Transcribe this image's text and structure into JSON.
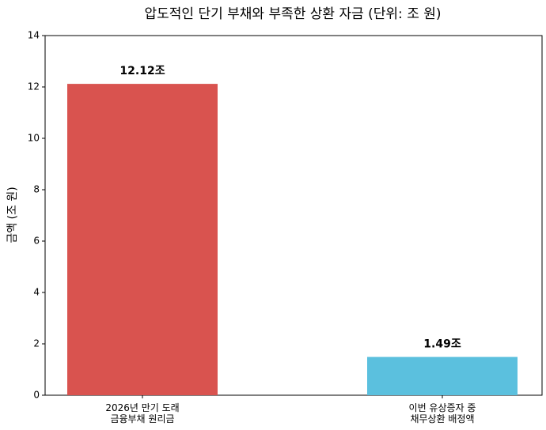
{
  "chart_data": {
    "type": "bar",
    "title": "압도적인 단기 부채와 부족한 상환 자금 (단위: 조 원)",
    "ylabel": "금액 (조 원)",
    "categories": [
      "2026년 만기 도래\n금융부채 원리금",
      "이번 유상증자 중\n채무상환 배정액"
    ],
    "values": [
      12.12,
      1.49
    ],
    "value_labels": [
      "12.12조",
      "1.49조"
    ],
    "colors": [
      "#d9534f",
      "#5bc0de"
    ],
    "ylim": [
      0,
      14
    ],
    "yticks": [
      0,
      2,
      4,
      6,
      8,
      10,
      12,
      14
    ],
    "grid": false
  }
}
